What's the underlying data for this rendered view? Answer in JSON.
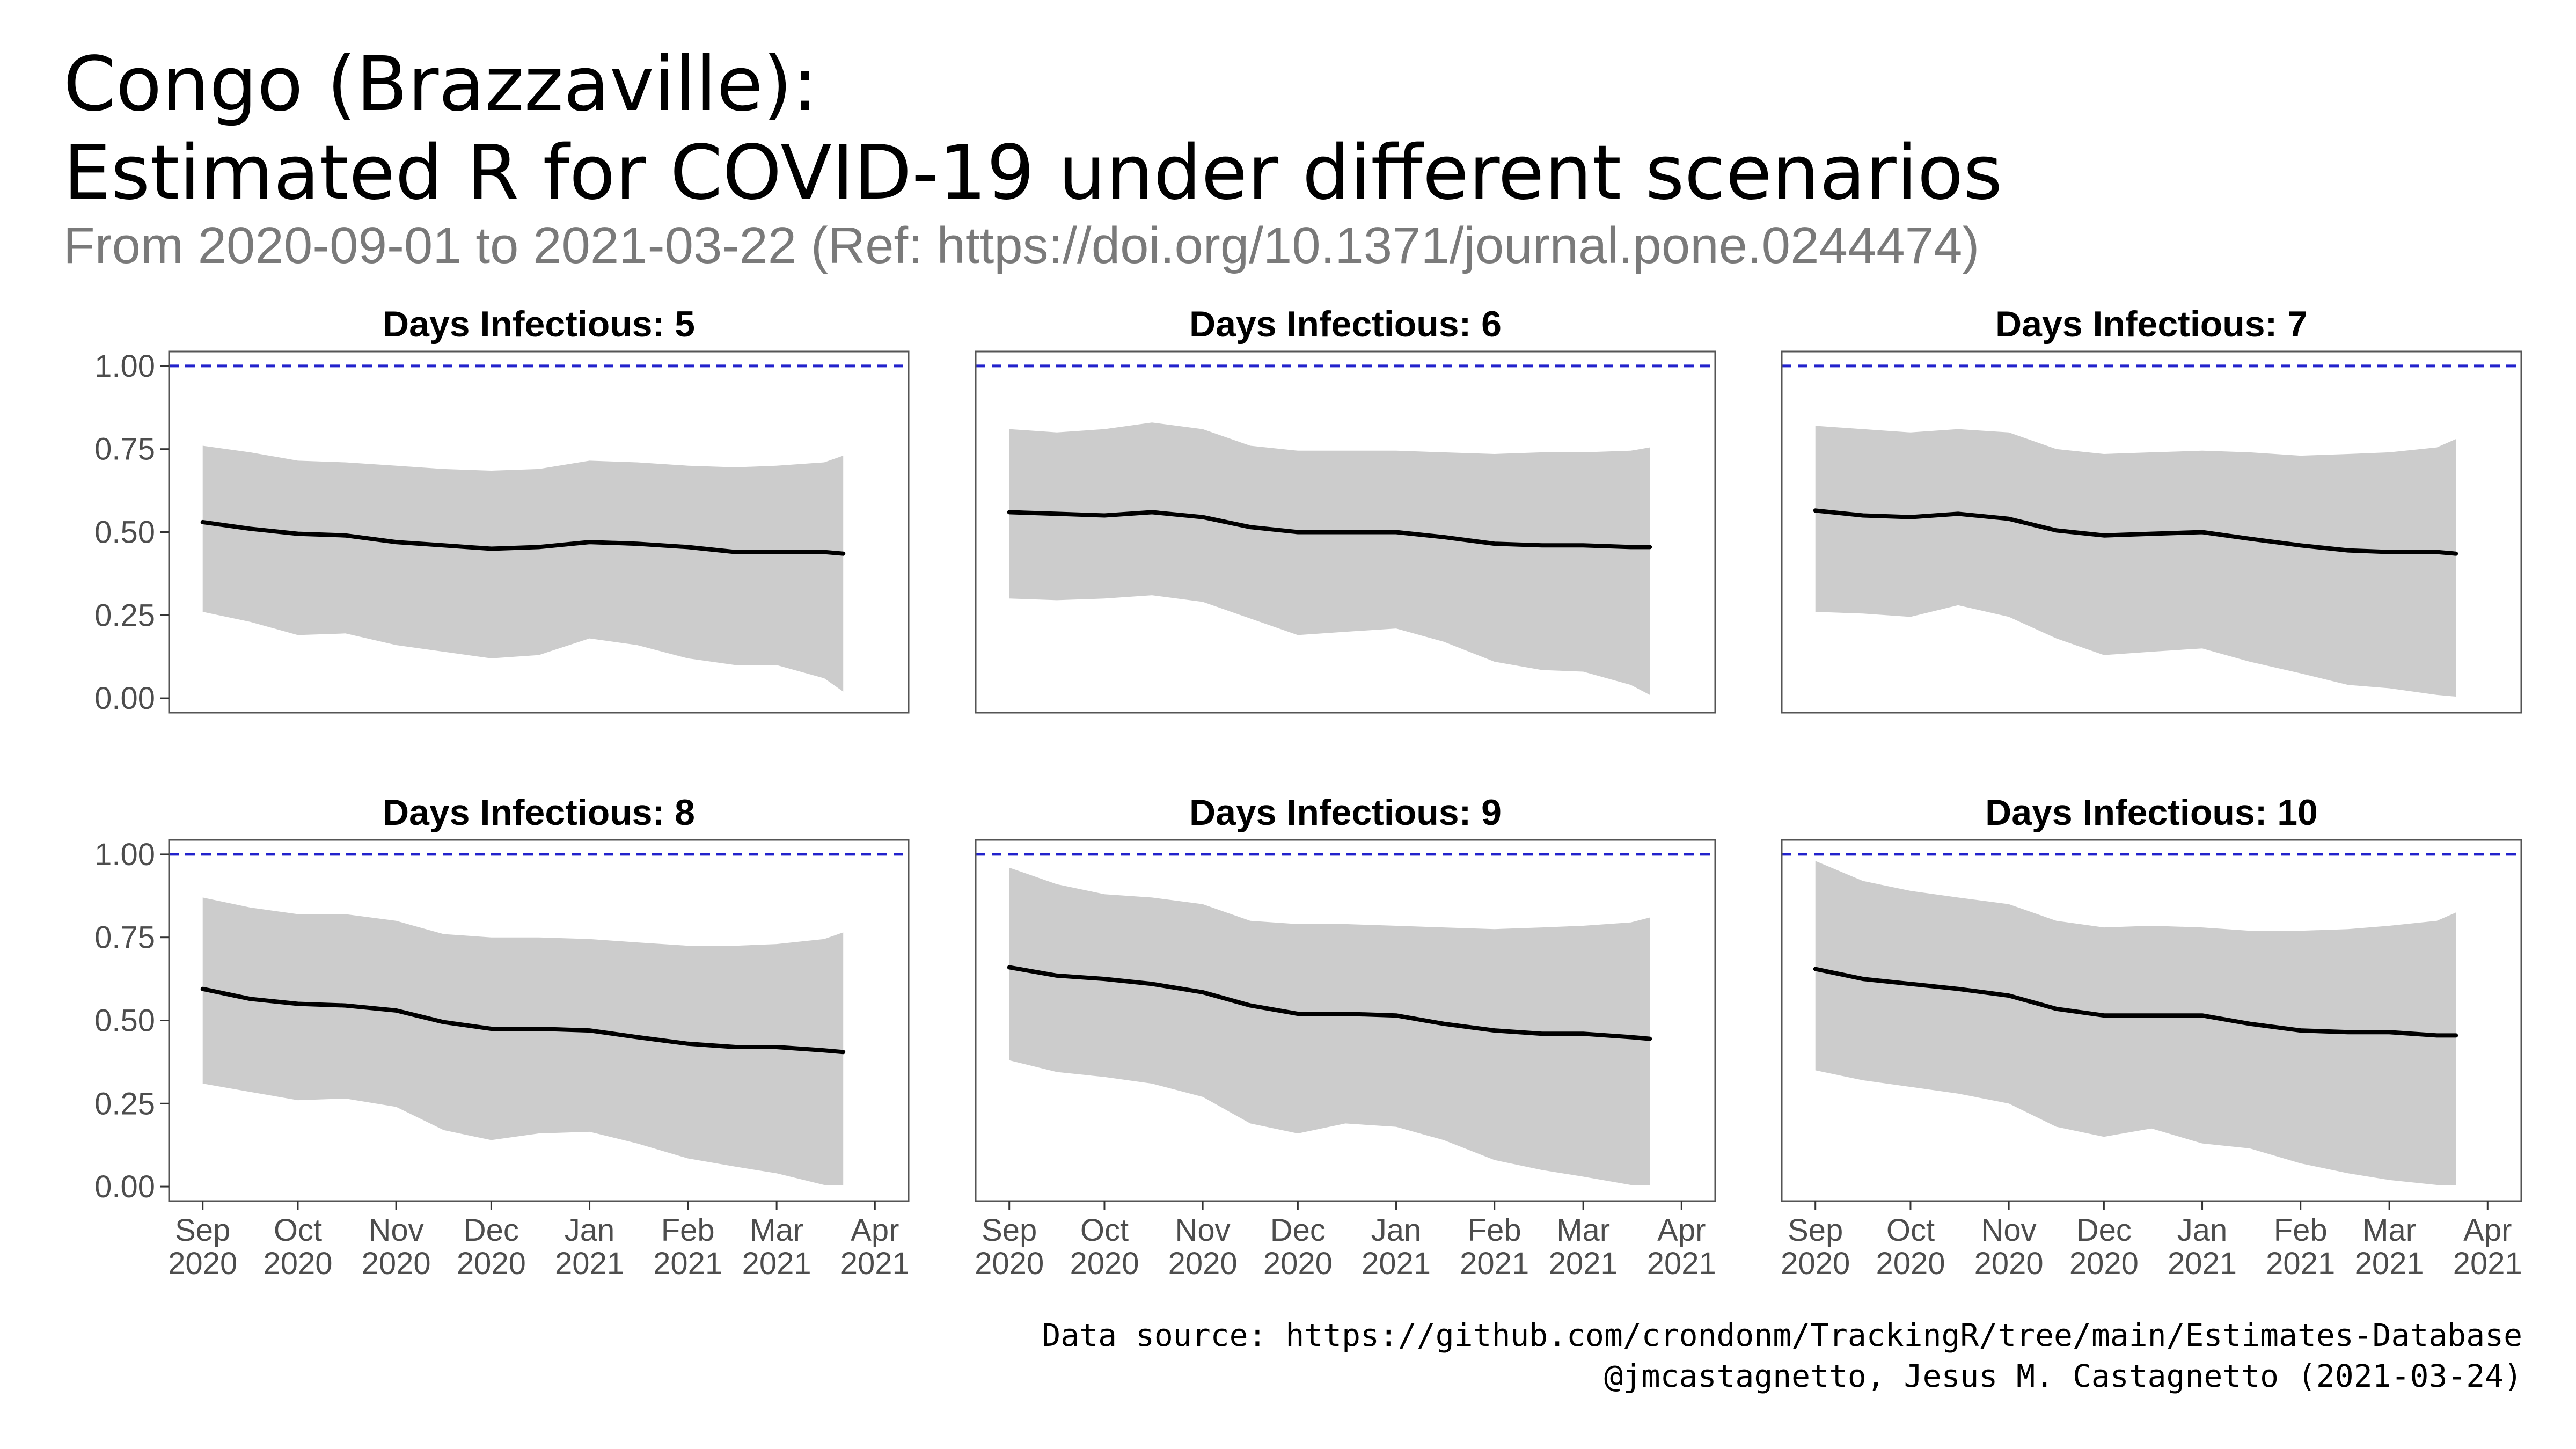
{
  "title_line1": "Congo (Brazzaville):",
  "title_line2": "Estimated R for COVID-19 under different scenarios",
  "subtitle": "From 2020-09-01 to 2021-03-22 (Ref: https://doi.org/10.1371/journal.pone.0244474)",
  "caption_line1": "Data source: https://github.com/crondonm/TrackingR/tree/main/Estimates-Database",
  "caption_line2": "@jmcastagnetto, Jesus M. Castagnetto (2021-03-24)",
  "colors": {
    "ribbon": "#cccccc",
    "line": "#000000",
    "reference": "#2222cc",
    "panel_border": "#555555"
  },
  "chart_data": {
    "type": "line",
    "facet_layout": "3 columns x 2 rows",
    "x_range": [
      "2020-09-01",
      "2021-04-01"
    ],
    "y_range": [
      0,
      1.0
    ],
    "reference_line": 1.0,
    "x_ticks": [
      {
        "date": "2020-09-01",
        "label1": "Sep",
        "label2": "2020"
      },
      {
        "date": "2020-10-01",
        "label1": "Oct",
        "label2": "2020"
      },
      {
        "date": "2020-11-01",
        "label1": "Nov",
        "label2": "2020"
      },
      {
        "date": "2020-12-01",
        "label1": "Dec",
        "label2": "2020"
      },
      {
        "date": "2021-01-01",
        "label1": "Jan",
        "label2": "2021"
      },
      {
        "date": "2021-02-01",
        "label1": "Feb",
        "label2": "2021"
      },
      {
        "date": "2021-03-01",
        "label1": "Mar",
        "label2": "2021"
      },
      {
        "date": "2021-04-01",
        "label1": "Apr",
        "label2": "2021"
      }
    ],
    "y_ticks": [
      {
        "value": 0.0,
        "label": "0.00"
      },
      {
        "value": 0.25,
        "label": "0.25"
      },
      {
        "value": 0.5,
        "label": "0.50"
      },
      {
        "value": 0.75,
        "label": "0.75"
      },
      {
        "value": 1.0,
        "label": "1.00"
      }
    ],
    "x_dates": [
      "2020-09-01",
      "2020-09-16",
      "2020-10-01",
      "2020-10-16",
      "2020-11-01",
      "2020-11-16",
      "2020-12-01",
      "2020-12-16",
      "2021-01-01",
      "2021-01-16",
      "2021-02-01",
      "2021-02-16",
      "2021-03-01",
      "2021-03-16",
      "2021-03-22"
    ],
    "panels": [
      {
        "title": "Days Infectious: 5",
        "r": [
          0.53,
          0.51,
          0.495,
          0.49,
          0.47,
          0.46,
          0.45,
          0.455,
          0.47,
          0.465,
          0.455,
          0.44,
          0.44,
          0.44,
          0.435
        ],
        "lower": [
          0.26,
          0.23,
          0.19,
          0.195,
          0.16,
          0.14,
          0.12,
          0.13,
          0.18,
          0.16,
          0.12,
          0.1,
          0.1,
          0.06,
          0.02
        ],
        "upper": [
          0.76,
          0.74,
          0.715,
          0.71,
          0.7,
          0.69,
          0.685,
          0.69,
          0.715,
          0.71,
          0.7,
          0.695,
          0.7,
          0.71,
          0.73
        ]
      },
      {
        "title": "Days Infectious: 6",
        "r": [
          0.56,
          0.555,
          0.55,
          0.56,
          0.545,
          0.515,
          0.5,
          0.5,
          0.5,
          0.485,
          0.465,
          0.46,
          0.46,
          0.455,
          0.455
        ],
        "lower": [
          0.3,
          0.295,
          0.3,
          0.31,
          0.29,
          0.24,
          0.19,
          0.2,
          0.21,
          0.17,
          0.11,
          0.085,
          0.08,
          0.04,
          0.01
        ],
        "upper": [
          0.81,
          0.8,
          0.81,
          0.83,
          0.81,
          0.76,
          0.745,
          0.745,
          0.745,
          0.74,
          0.735,
          0.74,
          0.74,
          0.745,
          0.755
        ]
      },
      {
        "title": "Days Infectious: 7",
        "r": [
          0.565,
          0.55,
          0.545,
          0.555,
          0.54,
          0.505,
          0.49,
          0.495,
          0.5,
          0.48,
          0.46,
          0.445,
          0.44,
          0.44,
          0.435
        ],
        "lower": [
          0.26,
          0.255,
          0.245,
          0.28,
          0.245,
          0.18,
          0.13,
          0.14,
          0.15,
          0.11,
          0.075,
          0.04,
          0.03,
          0.01,
          0.005
        ],
        "upper": [
          0.82,
          0.81,
          0.8,
          0.81,
          0.8,
          0.75,
          0.735,
          0.74,
          0.745,
          0.74,
          0.73,
          0.735,
          0.74,
          0.755,
          0.78
        ]
      },
      {
        "title": "Days Infectious: 8",
        "r": [
          0.595,
          0.565,
          0.55,
          0.545,
          0.53,
          0.495,
          0.475,
          0.475,
          0.47,
          0.45,
          0.43,
          0.42,
          0.42,
          0.41,
          0.405
        ],
        "lower": [
          0.31,
          0.285,
          0.26,
          0.265,
          0.24,
          0.17,
          0.14,
          0.16,
          0.165,
          0.13,
          0.085,
          0.06,
          0.04,
          0.005,
          0.005
        ],
        "upper": [
          0.87,
          0.84,
          0.82,
          0.82,
          0.8,
          0.76,
          0.75,
          0.75,
          0.745,
          0.735,
          0.725,
          0.725,
          0.73,
          0.745,
          0.765
        ]
      },
      {
        "title": "Days Infectious: 9",
        "r": [
          0.66,
          0.635,
          0.625,
          0.61,
          0.585,
          0.545,
          0.52,
          0.52,
          0.515,
          0.49,
          0.47,
          0.46,
          0.46,
          0.45,
          0.445
        ],
        "lower": [
          0.38,
          0.345,
          0.33,
          0.31,
          0.27,
          0.19,
          0.16,
          0.19,
          0.18,
          0.14,
          0.08,
          0.05,
          0.03,
          0.005,
          0.005
        ],
        "upper": [
          0.96,
          0.91,
          0.88,
          0.87,
          0.85,
          0.8,
          0.79,
          0.79,
          0.785,
          0.78,
          0.775,
          0.78,
          0.785,
          0.795,
          0.81
        ]
      },
      {
        "title": "Days Infectious: 10",
        "r": [
          0.655,
          0.625,
          0.61,
          0.595,
          0.575,
          0.535,
          0.515,
          0.515,
          0.515,
          0.49,
          0.47,
          0.465,
          0.465,
          0.455,
          0.455
        ],
        "lower": [
          0.35,
          0.32,
          0.3,
          0.28,
          0.25,
          0.18,
          0.15,
          0.175,
          0.13,
          0.115,
          0.07,
          0.04,
          0.02,
          0.005,
          0.005
        ],
        "upper": [
          0.98,
          0.92,
          0.89,
          0.87,
          0.85,
          0.8,
          0.78,
          0.785,
          0.78,
          0.77,
          0.77,
          0.775,
          0.785,
          0.8,
          0.825
        ]
      }
    ]
  }
}
